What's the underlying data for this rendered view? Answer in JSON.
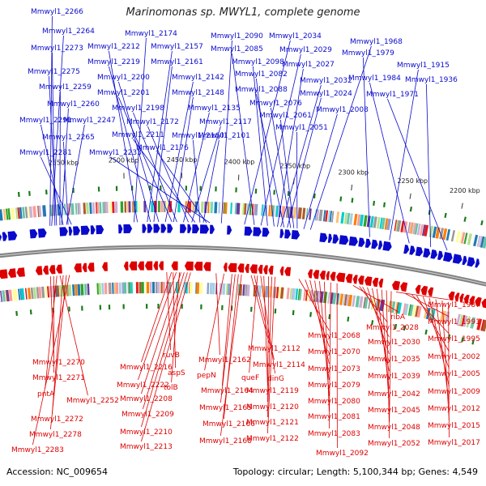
{
  "title": "Marinomonas sp. MWYL1, complete genome",
  "footer": {
    "accession": "Accession: NC_009654",
    "summary": "Topology: circular; Length: 5,100,344 bp; Genes: 4,549"
  },
  "colors": {
    "forward": "#0a0acc",
    "reverse": "#dd0000",
    "backbone": "#808080"
  },
  "scale_labels": [
    "2200 kbp",
    "2250 kbp",
    "2300 kbp",
    "2350 kbp",
    "2400 kbp",
    "2450 kbp",
    "2500 kbp",
    "2550 kbp"
  ],
  "forward_genes": [
    "Mmwyl1_2266",
    "Mmwyl1_2264",
    "Mmwyl1_2273",
    "Mmwyl1_2275",
    "Mmwyl1_2259",
    "Mmwyl1_2260",
    "Mmwyl1_2291",
    "Mmwyl1_2247",
    "Mmwyl1_2265",
    "Mmwyl1_2281",
    "Mmwyl1_2174",
    "Mmwyl1_2212",
    "Mmwyl1_2157",
    "Mmwyl1_2219",
    "Mmwyl1_2161",
    "Mmwyl1_2200",
    "Mmwyl1_2142",
    "Mmwyl1_2201",
    "Mmwyl1_2148",
    "Mmwyl1_2198",
    "Mmwyl1_2135",
    "Mmwyl1_2172",
    "Mmwyl1_2117",
    "Mmwyl1_2211",
    "Mmwyl1_2160",
    "Mmwyl1_2101",
    "Mmwyl1_2176",
    "Mmwyl1_2233",
    "Mmwyl1_2090",
    "Mmwyl1_2034",
    "Mmwyl1_2085",
    "Mmwyl1_2029",
    "Mmwyl1_2098",
    "Mmwyl1_2027",
    "Mmwyl1_2082",
    "Mmwyl1_2032",
    "Mmwyl1_2088",
    "Mmwyl1_2024",
    "Mmwyl1_2076",
    "Mmwyl1_2061",
    "Mmwyl1_2051",
    "Mmwyl1_2008",
    "Mmwyl1_1968",
    "Mmwyl1_1979",
    "Mmwyl1_1915",
    "Mmwyl1_1984",
    "Mmwyl1_1936",
    "Mmwyl1_1971"
  ],
  "reverse_genes": [
    "Mmwyl1_2270",
    "Mmwyl1_2271",
    "pntA",
    "Mmwyl1_2252",
    "Mmwyl1_2272",
    "Mmwyl1_2278",
    "Mmwyl1_2283",
    "ruvB",
    "Mmwyl1_2216",
    "aspS",
    "Mmwyl1_2222",
    "tolB",
    "Mmwyl1_2208",
    "Mmwyl1_2209",
    "Mmwyl1_2210",
    "Mmwyl1_2213",
    "Mmwyl1_2162",
    "pepN",
    "Mmwyl1_2164",
    "Mmwyl1_2165",
    "Mmwyl1_2166",
    "Mmwyl1_2168",
    "Mmwyl1_2112",
    "Mmwyl1_2114",
    "queF",
    "dinG",
    "Mmwyl1_2119",
    "Mmwyl1_2120",
    "Mmwyl1_2121",
    "Mmwyl1_2122",
    "Mmwyl1_2068",
    "Mmwyl1_2070",
    "Mmwyl1_2073",
    "Mmwyl1_2079",
    "Mmwyl1_2080",
    "Mmwyl1_2081",
    "Mmwyl1_2083",
    "Mmwyl1_2092",
    "ribA",
    "Mmwyl1_2028",
    "Mmwyl1_2030",
    "Mmwyl1_2035",
    "Mmwyl1_2039",
    "Mmwyl1_2042",
    "Mmwyl1_2045",
    "Mmwyl1_2048",
    "Mmwyl1_2052",
    "Mmwyl1_1987",
    "Mmwyl1_1991",
    "Mmwyl1_1995",
    "Mmwyl1_2002",
    "Mmwyl1_2005",
    "Mmwyl1_2009",
    "Mmwyl1_2012",
    "Mmwyl1_2015",
    "Mmwyl1_2017"
  ]
}
